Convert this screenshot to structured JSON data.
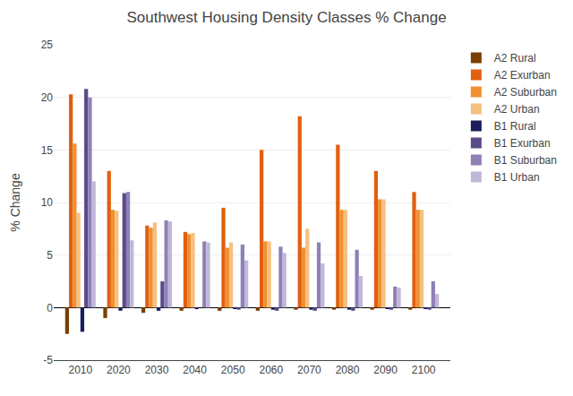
{
  "chart_data": {
    "type": "bar",
    "title": "Southwest Housing Density Classes % Change",
    "ylabel": "% Change",
    "x": [
      2010,
      2020,
      2030,
      2040,
      2050,
      2060,
      2070,
      2080,
      2090,
      2100
    ],
    "xlim": [
      2003,
      2107
    ],
    "xticks": [
      2010,
      2020,
      2030,
      2040,
      2050,
      2060,
      2070,
      2080,
      2090,
      2100
    ],
    "series": [
      {
        "name": "A2 Rural",
        "color": "#7B3F00",
        "values": [
          -2.5,
          -1.0,
          -0.5,
          -0.3,
          -0.3,
          -0.3,
          -0.2,
          -0.2,
          -0.2,
          -0.2
        ]
      },
      {
        "name": "A2 Exurban",
        "color": "#E06010",
        "values": [
          20.3,
          13.0,
          7.8,
          7.2,
          9.5,
          15.0,
          18.2,
          15.5,
          13.0,
          11.0
        ]
      },
      {
        "name": "A2 Suburban",
        "color": "#F09030",
        "values": [
          15.6,
          9.3,
          7.6,
          7.0,
          5.7,
          6.3,
          5.7,
          9.3,
          10.3,
          9.3
        ]
      },
      {
        "name": "A2 Urban",
        "color": "#F5C080",
        "values": [
          9.0,
          9.2,
          8.1,
          7.1,
          6.2,
          6.3,
          7.5,
          9.3,
          10.3,
          9.3
        ]
      },
      {
        "name": "B1 Rural",
        "color": "#1C1C5C",
        "values": [
          -2.3,
          -0.3,
          -0.3,
          -0.1,
          -0.1,
          -0.2,
          -0.2,
          -0.2,
          -0.1,
          -0.1
        ]
      },
      {
        "name": "B1 Exurban",
        "color": "#5A4A8A",
        "values": [
          20.8,
          10.9,
          2.5,
          0.0,
          -0.2,
          -0.3,
          -0.3,
          -0.3,
          -0.2,
          -0.2
        ]
      },
      {
        "name": "B1 Suburban",
        "color": "#9080B8",
        "values": [
          20.0,
          11.0,
          8.3,
          6.3,
          6.0,
          5.8,
          6.2,
          5.5,
          2.0,
          2.5
        ]
      },
      {
        "name": "B1 Urban",
        "color": "#C0B8D8",
        "values": [
          12.0,
          6.4,
          8.2,
          6.2,
          4.5,
          5.2,
          4.2,
          3.0,
          1.9,
          1.3
        ]
      }
    ],
    "ylim": [
      -5,
      25
    ],
    "yticks": [
      -5,
      0,
      5,
      10,
      15,
      20,
      25
    ],
    "grid": true,
    "legend": "upper right"
  }
}
